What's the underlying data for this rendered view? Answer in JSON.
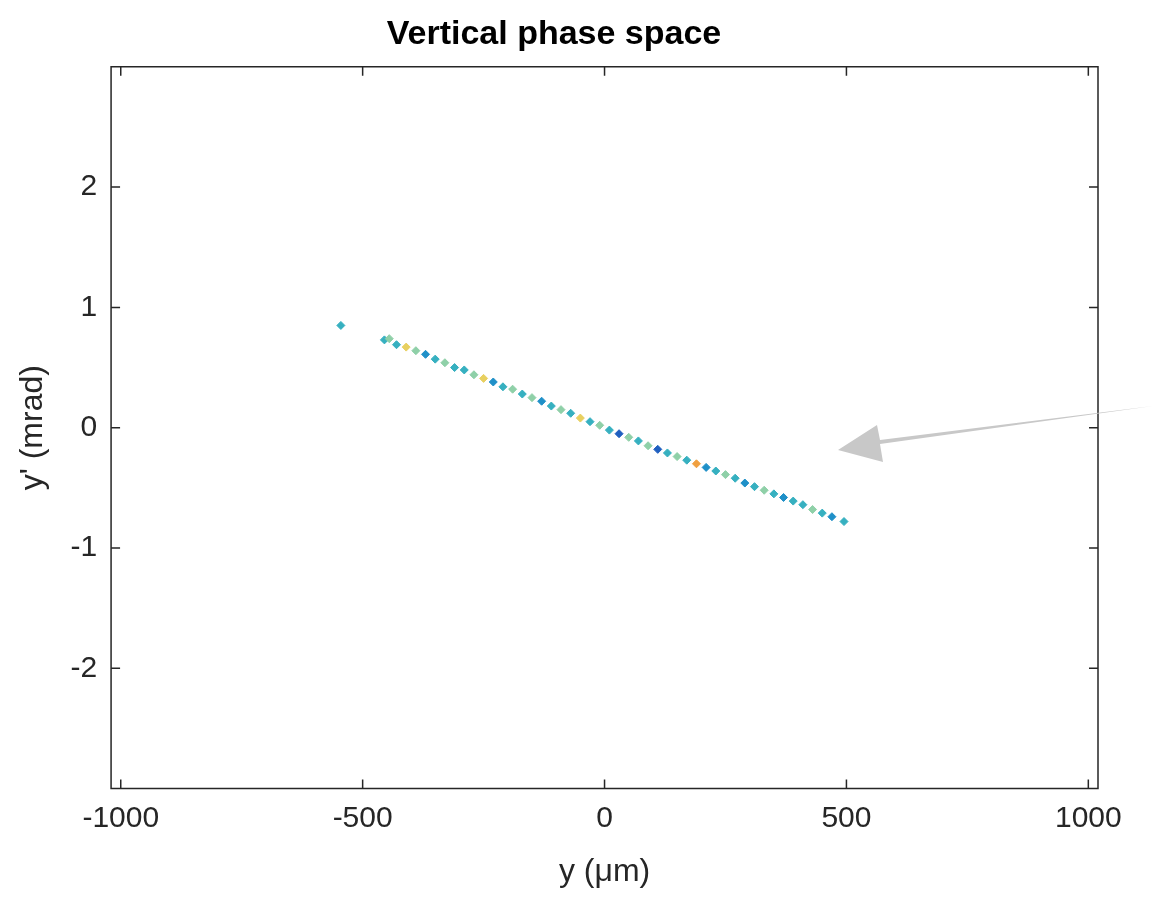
{
  "chart_data": {
    "type": "scatter",
    "title": "Vertical phase space",
    "xlabel": "y (μm)",
    "ylabel": "y' (mrad)",
    "x": [
      -545,
      -455,
      -445,
      -430,
      -410,
      -390,
      -370,
      -350,
      -330,
      -310,
      -290,
      -270,
      -250,
      -230,
      -210,
      -190,
      -170,
      -150,
      -130,
      -110,
      -90,
      -70,
      -50,
      -30,
      -10,
      10,
      30,
      50,
      70,
      90,
      110,
      130,
      150,
      170,
      190,
      210,
      230,
      250,
      270,
      290,
      310,
      330,
      350,
      370,
      390,
      410,
      430,
      450,
      470,
      495
    ],
    "values": [
      0.85,
      0.73,
      0.74,
      0.69,
      0.67,
      0.64,
      0.61,
      0.57,
      0.54,
      0.5,
      0.48,
      0.44,
      0.41,
      0.38,
      0.34,
      0.32,
      0.28,
      0.25,
      0.22,
      0.18,
      0.15,
      0.12,
      0.08,
      0.05,
      0.02,
      -0.02,
      -0.05,
      -0.08,
      -0.11,
      -0.15,
      -0.18,
      -0.21,
      -0.24,
      -0.27,
      -0.3,
      -0.33,
      -0.36,
      -0.39,
      -0.42,
      -0.46,
      -0.49,
      -0.52,
      -0.55,
      -0.58,
      -0.61,
      -0.64,
      -0.68,
      -0.71,
      -0.74,
      -0.78
    ],
    "colors": [
      "#36b0c0",
      "#36b0c0",
      "#8fd0a8",
      "#36b0c0",
      "#e8d060",
      "#8fd0a8",
      "#1f90c8",
      "#36b0c0",
      "#8fd0a8",
      "#36b0c0",
      "#36b0c0",
      "#8fd0a8",
      "#e8d060",
      "#1f90c8",
      "#36b0c0",
      "#8fd0a8",
      "#36b0c0",
      "#8fd0a8",
      "#1f90c8",
      "#36b0c0",
      "#8fd0a8",
      "#36b0c0",
      "#e8d060",
      "#36b0c0",
      "#8fd0a8",
      "#36b0c0",
      "#1f5fc0",
      "#8fd0a8",
      "#36b0c0",
      "#8fd0a8",
      "#1f5fc0",
      "#36b0c0",
      "#8fd0a8",
      "#36b0c0",
      "#f0a040",
      "#1f90c8",
      "#36b0c0",
      "#8fd0a8",
      "#36b0c0",
      "#1f90c8",
      "#36b0c0",
      "#8fd0a8",
      "#36b0c0",
      "#1f90c8",
      "#36b0c0",
      "#36b0c0",
      "#8fd0a8",
      "#36b0c0",
      "#1f90c8",
      "#36b0c0"
    ],
    "marker": "diamond",
    "grid": false,
    "legend": false,
    "xlim": [
      -1020,
      1020
    ],
    "xticks": [
      -1000,
      -500,
      0,
      500,
      1000
    ],
    "ylim": [
      -3,
      3
    ],
    "yticks": [
      -2,
      -1,
      0,
      1,
      2
    ]
  }
}
